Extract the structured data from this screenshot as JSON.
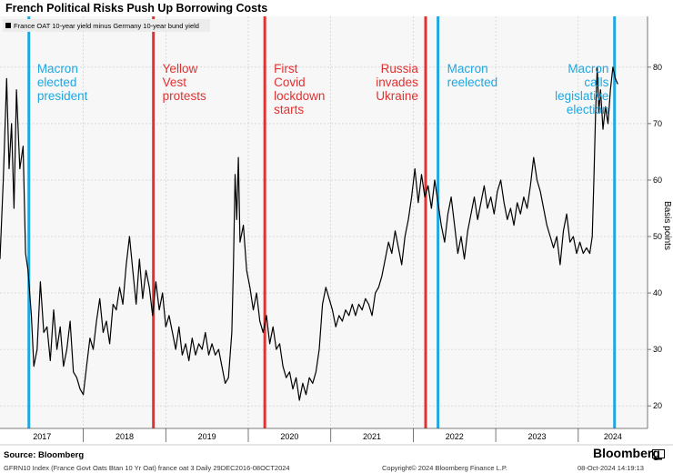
{
  "header": {
    "title": "French Political Risks Push Up Borrowing Costs"
  },
  "colors": {
    "line": "#000000",
    "blue": "#1ea7e1",
    "red": "#e03232",
    "plot_bg": "#f7f7f7",
    "grid": "#c8c8c8"
  },
  "chart_data": {
    "type": "line",
    "title": "French Political Risks Push Up Borrowing Costs",
    "legend": {
      "label": "France OAT 10-year yield minus Germany 10-year bund yield",
      "placement": "top-left"
    },
    "ylabel": "Basis points",
    "xlabel": "",
    "ylim": [
      16,
      89
    ],
    "yticks": [
      20,
      30,
      40,
      50,
      60,
      70,
      80
    ],
    "xlim": [
      2016.99,
      2024.84
    ],
    "xticks": [
      {
        "label": "2017",
        "at": 2017.5
      },
      {
        "label": "2018",
        "at": 2018.5
      },
      {
        "label": "2019",
        "at": 2019.5
      },
      {
        "label": "2020",
        "at": 2020.5
      },
      {
        "label": "2021",
        "at": 2021.5
      },
      {
        "label": "2022",
        "at": 2022.5
      },
      {
        "label": "2023",
        "at": 2023.5
      },
      {
        "label": "2024",
        "at": 2024.42
      }
    ],
    "year_boundaries": [
      2018,
      2019,
      2020,
      2021,
      2022,
      2023,
      2024
    ],
    "series": [
      {
        "name": "France OAT 10-year yield minus Germany 10-year bund yield",
        "points": [
          [
            2016.99,
            46
          ],
          [
            2017.03,
            60
          ],
          [
            2017.07,
            78
          ],
          [
            2017.1,
            62
          ],
          [
            2017.13,
            70
          ],
          [
            2017.16,
            55
          ],
          [
            2017.19,
            76
          ],
          [
            2017.23,
            62
          ],
          [
            2017.27,
            66
          ],
          [
            2017.3,
            47
          ],
          [
            2017.33,
            44
          ],
          [
            2017.37,
            36
          ],
          [
            2017.4,
            27
          ],
          [
            2017.44,
            30
          ],
          [
            2017.48,
            42
          ],
          [
            2017.52,
            33
          ],
          [
            2017.56,
            34
          ],
          [
            2017.6,
            28
          ],
          [
            2017.64,
            37
          ],
          [
            2017.68,
            30
          ],
          [
            2017.72,
            34
          ],
          [
            2017.76,
            27
          ],
          [
            2017.8,
            30
          ],
          [
            2017.84,
            35
          ],
          [
            2017.88,
            26
          ],
          [
            2017.92,
            25
          ],
          [
            2017.96,
            23
          ],
          [
            2018.0,
            22
          ],
          [
            2018.04,
            27
          ],
          [
            2018.08,
            32
          ],
          [
            2018.12,
            30
          ],
          [
            2018.16,
            35
          ],
          [
            2018.2,
            39
          ],
          [
            2018.24,
            33
          ],
          [
            2018.28,
            35
          ],
          [
            2018.32,
            31
          ],
          [
            2018.36,
            38
          ],
          [
            2018.4,
            37
          ],
          [
            2018.44,
            41
          ],
          [
            2018.48,
            38
          ],
          [
            2018.52,
            45
          ],
          [
            2018.56,
            50
          ],
          [
            2018.6,
            44
          ],
          [
            2018.64,
            38
          ],
          [
            2018.68,
            46
          ],
          [
            2018.72,
            39
          ],
          [
            2018.76,
            44
          ],
          [
            2018.8,
            41
          ],
          [
            2018.84,
            36
          ],
          [
            2018.88,
            42
          ],
          [
            2018.92,
            37
          ],
          [
            2018.96,
            40
          ],
          [
            2019.0,
            34
          ],
          [
            2019.04,
            36
          ],
          [
            2019.08,
            33
          ],
          [
            2019.12,
            30
          ],
          [
            2019.16,
            34
          ],
          [
            2019.2,
            29
          ],
          [
            2019.24,
            31
          ],
          [
            2019.28,
            28
          ],
          [
            2019.32,
            32
          ],
          [
            2019.36,
            29
          ],
          [
            2019.4,
            31
          ],
          [
            2019.44,
            30
          ],
          [
            2019.48,
            33
          ],
          [
            2019.52,
            29
          ],
          [
            2019.56,
            31
          ],
          [
            2019.6,
            29
          ],
          [
            2019.64,
            30
          ],
          [
            2019.68,
            27
          ],
          [
            2019.72,
            24
          ],
          [
            2019.76,
            25
          ],
          [
            2019.8,
            33
          ],
          [
            2019.82,
            45
          ],
          [
            2019.84,
            61
          ],
          [
            2019.86,
            53
          ],
          [
            2019.88,
            64
          ],
          [
            2019.9,
            49
          ],
          [
            2019.94,
            52
          ],
          [
            2019.98,
            44
          ],
          [
            2020.02,
            41
          ],
          [
            2020.06,
            37
          ],
          [
            2020.1,
            40
          ],
          [
            2020.14,
            35
          ],
          [
            2020.18,
            33
          ],
          [
            2020.22,
            36
          ],
          [
            2020.26,
            31
          ],
          [
            2020.3,
            34
          ],
          [
            2020.34,
            30
          ],
          [
            2020.38,
            31
          ],
          [
            2020.42,
            27
          ],
          [
            2020.46,
            25
          ],
          [
            2020.5,
            26
          ],
          [
            2020.54,
            23
          ],
          [
            2020.58,
            25
          ],
          [
            2020.62,
            21
          ],
          [
            2020.66,
            24
          ],
          [
            2020.7,
            22
          ],
          [
            2020.74,
            25
          ],
          [
            2020.78,
            24
          ],
          [
            2020.82,
            26
          ],
          [
            2020.86,
            30
          ],
          [
            2020.9,
            38
          ],
          [
            2020.94,
            41
          ],
          [
            2020.98,
            39
          ],
          [
            2021.02,
            37
          ],
          [
            2021.06,
            34
          ],
          [
            2021.1,
            36
          ],
          [
            2021.14,
            35
          ],
          [
            2021.18,
            37
          ],
          [
            2021.22,
            36
          ],
          [
            2021.26,
            38
          ],
          [
            2021.3,
            36
          ],
          [
            2021.34,
            38
          ],
          [
            2021.38,
            37
          ],
          [
            2021.42,
            39
          ],
          [
            2021.46,
            38
          ],
          [
            2021.5,
            36
          ],
          [
            2021.54,
            40
          ],
          [
            2021.58,
            41
          ],
          [
            2021.62,
            43
          ],
          [
            2021.66,
            46
          ],
          [
            2021.7,
            49
          ],
          [
            2021.74,
            47
          ],
          [
            2021.78,
            51
          ],
          [
            2021.82,
            48
          ],
          [
            2021.86,
            45
          ],
          [
            2021.9,
            50
          ],
          [
            2021.94,
            53
          ],
          [
            2021.98,
            57
          ],
          [
            2022.02,
            62
          ],
          [
            2022.06,
            56
          ],
          [
            2022.1,
            61
          ],
          [
            2022.14,
            57
          ],
          [
            2022.18,
            59
          ],
          [
            2022.22,
            55
          ],
          [
            2022.26,
            60
          ],
          [
            2022.3,
            56
          ],
          [
            2022.34,
            52
          ],
          [
            2022.38,
            49
          ],
          [
            2022.42,
            54
          ],
          [
            2022.46,
            57
          ],
          [
            2022.5,
            52
          ],
          [
            2022.54,
            47
          ],
          [
            2022.58,
            50
          ],
          [
            2022.62,
            46
          ],
          [
            2022.66,
            51
          ],
          [
            2022.7,
            54
          ],
          [
            2022.74,
            57
          ],
          [
            2022.78,
            53
          ],
          [
            2022.82,
            56
          ],
          [
            2022.86,
            59
          ],
          [
            2022.9,
            55
          ],
          [
            2022.94,
            57
          ],
          [
            2022.98,
            54
          ],
          [
            2023.02,
            58
          ],
          [
            2023.06,
            60
          ],
          [
            2023.1,
            56
          ],
          [
            2023.14,
            53
          ],
          [
            2023.18,
            55
          ],
          [
            2023.22,
            52
          ],
          [
            2023.26,
            56
          ],
          [
            2023.3,
            54
          ],
          [
            2023.34,
            57
          ],
          [
            2023.38,
            55
          ],
          [
            2023.42,
            59
          ],
          [
            2023.46,
            64
          ],
          [
            2023.5,
            60
          ],
          [
            2023.54,
            58
          ],
          [
            2023.58,
            55
          ],
          [
            2023.62,
            52
          ],
          [
            2023.66,
            50
          ],
          [
            2023.7,
            48
          ],
          [
            2023.74,
            50
          ],
          [
            2023.78,
            45
          ],
          [
            2023.82,
            51
          ],
          [
            2023.86,
            54
          ],
          [
            2023.9,
            49
          ],
          [
            2023.94,
            50
          ],
          [
            2023.98,
            47
          ],
          [
            2024.02,
            49
          ],
          [
            2024.06,
            47
          ],
          [
            2024.1,
            48
          ],
          [
            2024.14,
            47
          ],
          [
            2024.17,
            50
          ],
          [
            2024.19,
            60
          ],
          [
            2024.21,
            72
          ],
          [
            2024.23,
            80
          ],
          [
            2024.25,
            72
          ],
          [
            2024.27,
            76
          ],
          [
            2024.3,
            69
          ],
          [
            2024.33,
            73
          ],
          [
            2024.36,
            70
          ],
          [
            2024.39,
            76
          ],
          [
            2024.42,
            80
          ],
          [
            2024.45,
            78
          ],
          [
            2024.48,
            77
          ]
        ]
      }
    ],
    "vlines": [
      {
        "x": 2017.34,
        "color": "blue"
      },
      {
        "x": 2018.85,
        "color": "red"
      },
      {
        "x": 2020.2,
        "color": "red"
      },
      {
        "x": 2022.15,
        "color": "red"
      },
      {
        "x": 2022.3,
        "color": "blue"
      },
      {
        "x": 2024.44,
        "color": "blue"
      }
    ],
    "annotations": [
      {
        "lines": [
          "Macron",
          "elected",
          "president"
        ],
        "x": 2017.44,
        "color": "blue",
        "align": "start"
      },
      {
        "lines": [
          "Yellow",
          "Vest",
          "protests"
        ],
        "x": 2018.96,
        "color": "red",
        "align": "start"
      },
      {
        "lines": [
          "First",
          "Covid",
          "lockdown",
          "starts"
        ],
        "x": 2020.31,
        "color": "red",
        "align": "start"
      },
      {
        "lines": [
          "Russia",
          "invades",
          "Ukraine"
        ],
        "x": 2022.06,
        "color": "red",
        "align": "end"
      },
      {
        "lines": [
          "Macron",
          "reelected"
        ],
        "x": 2022.41,
        "color": "blue",
        "align": "start"
      },
      {
        "lines": [
          "Macron",
          "calls",
          "legislative",
          "election"
        ],
        "x": 2024.37,
        "color": "blue",
        "align": "end"
      }
    ]
  },
  "footer": {
    "source": "Source: Bloomberg",
    "index_desc": "GFRN10 Index (France Govt Oats Btan 10 Yr Oat) france oat 3  Daily 29DEC2016-08OCT2024",
    "copyright": "Copyright© 2024 Bloomberg Finance L.P.",
    "timestamp": "08-Oct-2024  14:19:13",
    "brand": "Bloomberg"
  }
}
